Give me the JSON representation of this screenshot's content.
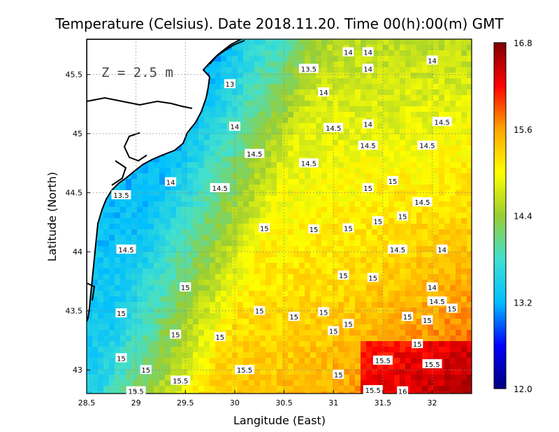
{
  "chart_data": {
    "type": "heatmap",
    "title": "Temperature (Celsius). Date 2018.11.20. Time 00(h):00(m)  GMT",
    "xlabel": "Langitude (East)",
    "ylabel": "Latitude (North)",
    "xlim": [
      28.5,
      32.4
    ],
    "ylim": [
      42.8,
      45.8
    ],
    "x_ticks": [
      28.5,
      29,
      29.5,
      30,
      30.5,
      31,
      31.5,
      32
    ],
    "x_tick_labels": [
      "28.5",
      "29",
      "29.5",
      "30",
      "30.5",
      "31",
      "31.5",
      "32"
    ],
    "y_ticks": [
      43,
      43.5,
      44,
      44.5,
      45,
      45.5
    ],
    "y_tick_labels": [
      "43",
      "43.5",
      "44",
      "44.5",
      "45",
      "45.5"
    ],
    "grid": true,
    "annotation": "Z = 2.5 m",
    "colorbar": {
      "min": 12.0,
      "max": 16.8,
      "ticks": [
        12.0,
        13.2,
        14.4,
        15.6,
        16.8
      ],
      "tick_labels": [
        "12.0",
        "13.2",
        "14.4",
        "15.6",
        "16.8"
      ],
      "colormap": [
        "#00007f",
        "#0000ff",
        "#00bfff",
        "#40e0d0",
        "#9acd32",
        "#ffff00",
        "#ffa500",
        "#ff0000",
        "#7f0000"
      ]
    },
    "contour_labels": [
      {
        "lon": 31.15,
        "lat": 45.69,
        "text": "14"
      },
      {
        "lon": 31.35,
        "lat": 45.69,
        "text": "14"
      },
      {
        "lon": 30.75,
        "lat": 45.55,
        "text": "13.5"
      },
      {
        "lon": 31.35,
        "lat": 45.55,
        "text": "14"
      },
      {
        "lon": 32.0,
        "lat": 45.62,
        "text": "14"
      },
      {
        "lon": 29.95,
        "lat": 45.42,
        "text": "13"
      },
      {
        "lon": 30.9,
        "lat": 45.35,
        "text": "14"
      },
      {
        "lon": 30.0,
        "lat": 45.06,
        "text": "14"
      },
      {
        "lon": 31.0,
        "lat": 45.05,
        "text": "14.5"
      },
      {
        "lon": 31.35,
        "lat": 45.08,
        "text": "14"
      },
      {
        "lon": 32.1,
        "lat": 45.1,
        "text": "14.5"
      },
      {
        "lon": 30.2,
        "lat": 44.83,
        "text": "14.5"
      },
      {
        "lon": 31.35,
        "lat": 44.9,
        "text": "14.5"
      },
      {
        "lon": 31.95,
        "lat": 44.9,
        "text": "14.5"
      },
      {
        "lon": 30.75,
        "lat": 44.75,
        "text": "14.5"
      },
      {
        "lon": 29.35,
        "lat": 44.59,
        "text": "14"
      },
      {
        "lon": 29.85,
        "lat": 44.54,
        "text": "14.5"
      },
      {
        "lon": 31.6,
        "lat": 44.6,
        "text": "15"
      },
      {
        "lon": 31.35,
        "lat": 44.54,
        "text": "15"
      },
      {
        "lon": 28.85,
        "lat": 44.48,
        "text": "13.5"
      },
      {
        "lon": 31.9,
        "lat": 44.42,
        "text": "14.5"
      },
      {
        "lon": 31.7,
        "lat": 44.3,
        "text": "15"
      },
      {
        "lon": 31.45,
        "lat": 44.26,
        "text": "15"
      },
      {
        "lon": 30.3,
        "lat": 44.2,
        "text": "15"
      },
      {
        "lon": 30.8,
        "lat": 44.19,
        "text": "15"
      },
      {
        "lon": 31.15,
        "lat": 44.2,
        "text": "15"
      },
      {
        "lon": 31.65,
        "lat": 44.02,
        "text": "14.5"
      },
      {
        "lon": 32.1,
        "lat": 44.02,
        "text": "14"
      },
      {
        "lon": 28.9,
        "lat": 44.02,
        "text": "14.5"
      },
      {
        "lon": 31.1,
        "lat": 43.8,
        "text": "15"
      },
      {
        "lon": 31.4,
        "lat": 43.78,
        "text": "15"
      },
      {
        "lon": 29.5,
        "lat": 43.7,
        "text": "15"
      },
      {
        "lon": 32.0,
        "lat": 43.7,
        "text": "14"
      },
      {
        "lon": 32.05,
        "lat": 43.58,
        "text": "14.5"
      },
      {
        "lon": 28.85,
        "lat": 43.48,
        "text": "15"
      },
      {
        "lon": 30.25,
        "lat": 43.5,
        "text": "15"
      },
      {
        "lon": 30.6,
        "lat": 43.45,
        "text": "15"
      },
      {
        "lon": 30.9,
        "lat": 43.49,
        "text": "15"
      },
      {
        "lon": 32.2,
        "lat": 43.52,
        "text": "15"
      },
      {
        "lon": 31.75,
        "lat": 43.45,
        "text": "15"
      },
      {
        "lon": 31.95,
        "lat": 43.42,
        "text": "15"
      },
      {
        "lon": 31.15,
        "lat": 43.39,
        "text": "15"
      },
      {
        "lon": 31.0,
        "lat": 43.33,
        "text": "15"
      },
      {
        "lon": 29.4,
        "lat": 43.3,
        "text": "15"
      },
      {
        "lon": 29.85,
        "lat": 43.28,
        "text": "15"
      },
      {
        "lon": 31.85,
        "lat": 43.22,
        "text": "15"
      },
      {
        "lon": 28.85,
        "lat": 43.1,
        "text": "15"
      },
      {
        "lon": 31.5,
        "lat": 43.08,
        "text": "15.5"
      },
      {
        "lon": 32.0,
        "lat": 43.05,
        "text": "15.5"
      },
      {
        "lon": 30.1,
        "lat": 43.0,
        "text": "15.5"
      },
      {
        "lon": 29.1,
        "lat": 43.0,
        "text": "15"
      },
      {
        "lon": 31.05,
        "lat": 42.96,
        "text": "15"
      },
      {
        "lon": 29.45,
        "lat": 42.91,
        "text": "15.5"
      },
      {
        "lon": 29.0,
        "lat": 42.82,
        "text": "15.5"
      },
      {
        "lon": 31.4,
        "lat": 42.83,
        "text": "15.5"
      },
      {
        "lon": 31.7,
        "lat": 42.82,
        "text": "16"
      }
    ]
  }
}
